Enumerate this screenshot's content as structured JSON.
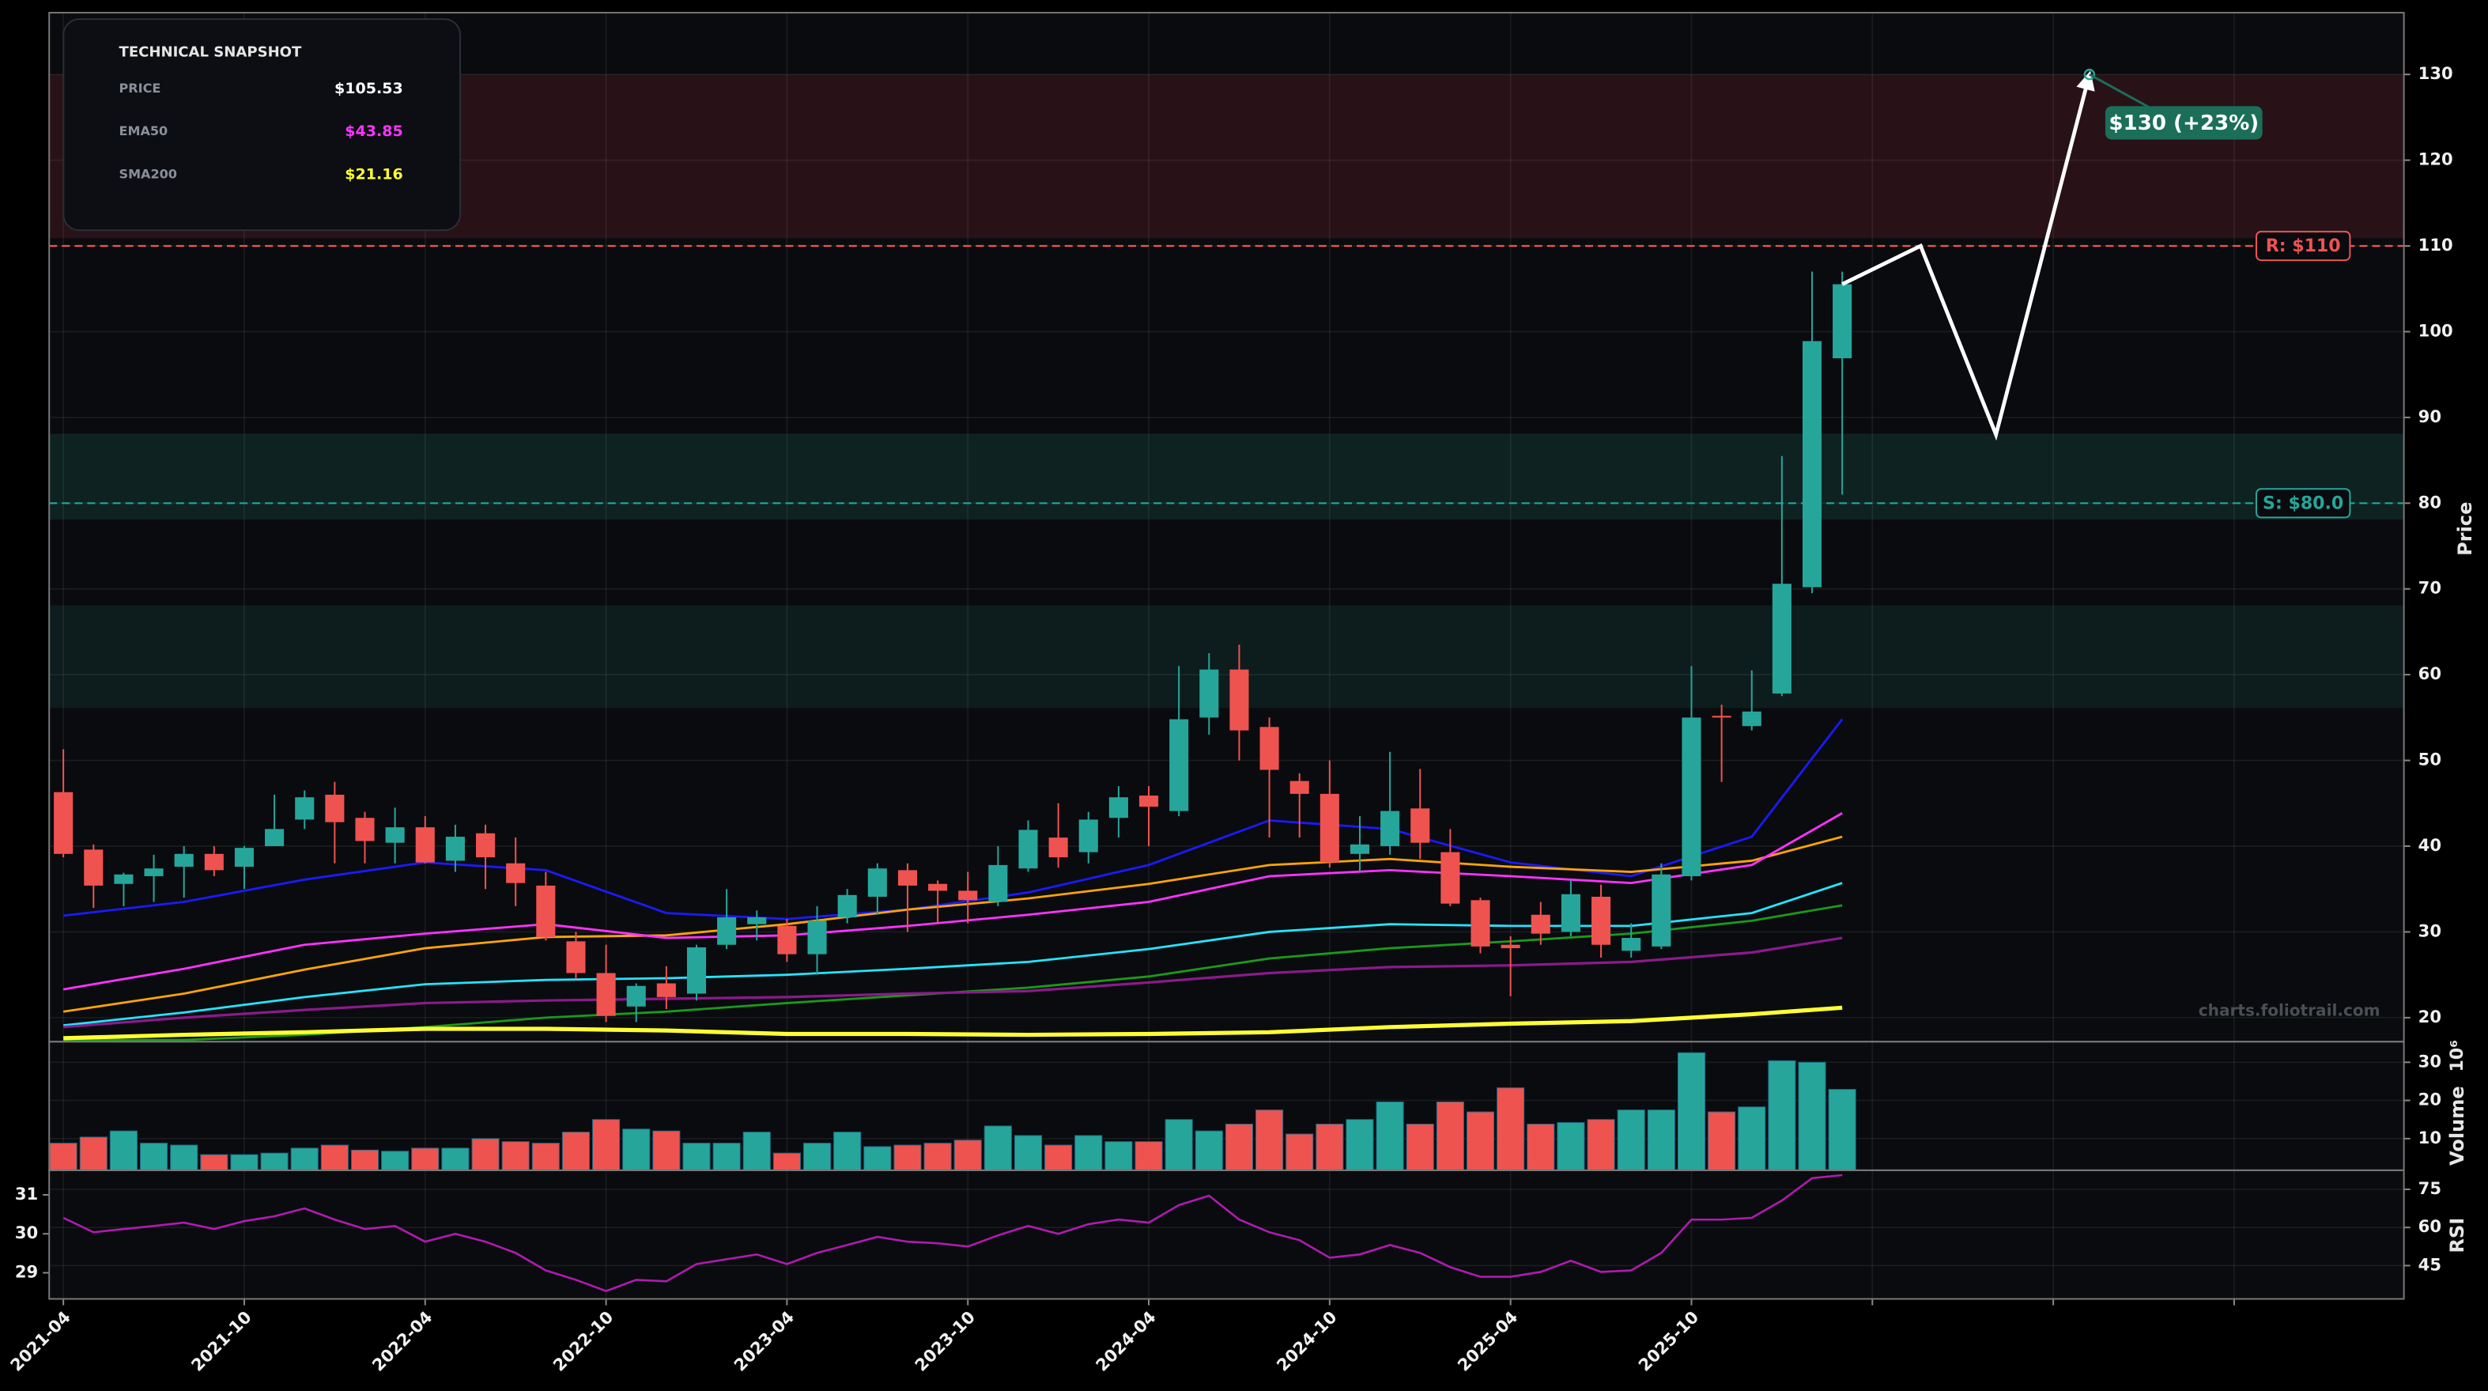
{
  "chart_data": {
    "type": "candlestick",
    "snapshot": {
      "title": "TECHNICAL SNAPSHOT",
      "rows": [
        {
          "label": "PRICE",
          "value": "$105.53",
          "color": "#ffffff"
        },
        {
          "label": "EMA50",
          "value": "$43.85",
          "color": "#ff33ff"
        },
        {
          "label": "SMA200",
          "value": "$21.16",
          "color": "#ffff33"
        }
      ]
    },
    "watermark": "charts.foliotrail.com",
    "ylabel": "Price",
    "categories": [
      "2021-04",
      null,
      null,
      null,
      null,
      null,
      "2021-10",
      null,
      null,
      null,
      null,
      null,
      "2022-04",
      null,
      null,
      null,
      null,
      null,
      "2022-10",
      null,
      null,
      null,
      null,
      null,
      "2023-04",
      null,
      null,
      null,
      null,
      null,
      "2023-10",
      null,
      null,
      null,
      null,
      null,
      "2024-04",
      null,
      null,
      null,
      null,
      null,
      "2024-10",
      null,
      null,
      null,
      null,
      null,
      "2025-04",
      null,
      null,
      null,
      null,
      null,
      "2025-10",
      null,
      null,
      null,
      null,
      null
    ],
    "future_xticks": [
      60,
      66,
      72
    ],
    "xlim": [
      -0.47,
      77.63
    ],
    "ylim": [
      17.2,
      137.2
    ],
    "yticks": [
      20,
      30,
      40,
      50,
      60,
      70,
      80,
      90,
      100,
      110,
      120,
      130
    ],
    "grid": true,
    "up_color": "#26a69a",
    "down_color": "#ef5350",
    "open": [
      46.3,
      39.6,
      35.6,
      36.5,
      37.6,
      39.1,
      37.6,
      40,
      43.1,
      46,
      43.3,
      40.4,
      42.2,
      38.3,
      41.5,
      38,
      35.4,
      28.9,
      25.2,
      21.3,
      24,
      22.8,
      28.5,
      30.9,
      30.7,
      27.4,
      31.7,
      34.1,
      37.2,
      35.6,
      34.8,
      33.5,
      37.4,
      41,
      39.3,
      43.3,
      45.9,
      44.1,
      55,
      60.6,
      53.9,
      47.6,
      46.1,
      39.1,
      40,
      44.4,
      39.3,
      33.7,
      28.5,
      32,
      30,
      34.1,
      27.8,
      28.3,
      36.5,
      55.2,
      54,
      57.8,
      70.2,
      96.9
    ],
    "high": [
      51.3,
      40.2,
      36.9,
      39,
      40,
      40,
      40,
      46,
      46.5,
      47.5,
      44,
      44.5,
      43.5,
      42.5,
      42.5,
      41,
      37,
      30,
      28.5,
      24,
      26,
      28.5,
      35,
      32.5,
      31.5,
      33,
      35,
      38,
      38,
      36,
      37,
      40,
      43,
      45,
      44,
      47,
      47,
      61,
      62.5,
      63.5,
      55,
      48.5,
      50,
      43.5,
      51,
      49,
      42,
      34,
      29.5,
      33.5,
      36,
      35.5,
      31,
      38,
      61,
      56.5,
      60.5,
      85.5,
      107,
      107
    ],
    "low": [
      38.7,
      32.8,
      33,
      33.5,
      34,
      36.5,
      35,
      40,
      42,
      38,
      38,
      38,
      38,
      37,
      35,
      33,
      29,
      24.5,
      19.5,
      19.5,
      21,
      22,
      28,
      29,
      26.5,
      25,
      31,
      32,
      30,
      31,
      31,
      33,
      37,
      37.5,
      38,
      41,
      40,
      43.5,
      53,
      50,
      41,
      41,
      37.5,
      37,
      39,
      38.5,
      33,
      27.5,
      22.5,
      28.5,
      29.5,
      27,
      27,
      28,
      36,
      47.5,
      53.5,
      57.5,
      69.5,
      81
    ],
    "close": [
      39.1,
      35.4,
      36.7,
      37.4,
      39.1,
      37.2,
      39.8,
      42,
      45.7,
      42.8,
      40.6,
      42.2,
      38.1,
      41.1,
      38.7,
      35.7,
      29.4,
      25.2,
      20.2,
      23.7,
      22.4,
      28.2,
      31.7,
      31.7,
      27.4,
      31.3,
      34.3,
      37.4,
      35.4,
      34.8,
      33.7,
      37.8,
      41.9,
      38.7,
      43.1,
      45.7,
      44.6,
      54.8,
      60.6,
      53.5,
      48.9,
      46.1,
      38.1,
      40.2,
      44.1,
      40.4,
      33.3,
      28.3,
      28.1,
      29.8,
      34.4,
      28.5,
      29.3,
      36.7,
      55,
      55,
      55.7,
      70.6,
      98.9,
      105.53
    ],
    "overlay_x": [
      0,
      4,
      8,
      12,
      16,
      20,
      24,
      28,
      32,
      36,
      40,
      44,
      48,
      52,
      56,
      59
    ],
    "overlays": [
      {
        "color": "#1a1aff",
        "width": 1.4,
        "values": [
          31.9,
          33.5,
          36.1,
          38.1,
          37.2,
          32.2,
          31.5,
          32.6,
          34.6,
          37.8,
          43,
          42,
          38.1,
          36.5,
          41.1,
          54.8
        ]
      },
      {
        "color": "#ffa500",
        "width": 1.4,
        "values": [
          20.7,
          22.8,
          25.6,
          28.1,
          29.4,
          29.6,
          30.9,
          32.6,
          33.9,
          35.6,
          37.8,
          38.5,
          37.6,
          37,
          38.3,
          41.1
        ]
      },
      {
        "color": "#ff33ff",
        "width": 1.4,
        "values": [
          23.3,
          25.7,
          28.5,
          29.8,
          30.9,
          29.3,
          29.6,
          30.7,
          32,
          33.5,
          36.5,
          37.2,
          36.5,
          35.7,
          37.8,
          43.85
        ]
      },
      {
        "color": "#22e5ff",
        "width": 1.4,
        "values": [
          19.1,
          20.6,
          22.4,
          23.9,
          24.4,
          24.6,
          25,
          25.7,
          26.5,
          28,
          30,
          30.9,
          30.7,
          30.7,
          32.2,
          35.7
        ]
      },
      {
        "color": "#1a9a1a",
        "width": 1.4,
        "values": [
          17.4,
          17.4,
          18,
          18.9,
          20,
          20.7,
          21.7,
          22.6,
          23.5,
          24.8,
          26.9,
          28.1,
          28.9,
          29.8,
          31.3,
          33.1
        ]
      },
      {
        "color": "#8b1a8b",
        "width": 1.6,
        "values": [
          18.9,
          20,
          20.9,
          21.7,
          22,
          22.2,
          22.4,
          22.8,
          23.1,
          24.1,
          25.2,
          25.9,
          26.1,
          26.5,
          27.6,
          29.3
        ]
      },
      {
        "color": "#ffff33",
        "width": 2.6,
        "values": [
          17.6,
          18,
          18.3,
          18.7,
          18.7,
          18.5,
          18.1,
          18.1,
          18,
          18.1,
          18.3,
          18.9,
          19.3,
          19.6,
          20.4,
          21.16
        ]
      }
    ],
    "zones": [
      {
        "from": 110.9,
        "to": 130,
        "color": "rgba(120,40,50,0.28)"
      },
      {
        "from": 78.1,
        "to": 88.1,
        "color": "rgba(30,120,100,0.22)"
      },
      {
        "from": 56.1,
        "to": 68.1,
        "color": "rgba(30,120,100,0.16)"
      }
    ],
    "levels": [
      {
        "value": 110,
        "label": "R: $110",
        "color": "#ef5350"
      },
      {
        "value": 80,
        "label": "S: $80.0",
        "color": "#26a69a"
      }
    ],
    "projection": {
      "x": [
        59,
        61.6,
        64.1,
        67.2
      ],
      "y": [
        105.53,
        110,
        88,
        130
      ],
      "label": "$130 (+23%)",
      "color": "#ffffff",
      "label_color": "#1b6e58"
    },
    "volume": {
      "ylabel": "Volume",
      "exponent_label": "10⁶",
      "ylim": [
        1.7,
        35.4
      ],
      "yticks": [
        10,
        20,
        30
      ],
      "values": [
        8.8,
        10.4,
        12,
        8.8,
        8.3,
        5.8,
        5.8,
        6.2,
        7.5,
        8.3,
        7,
        6.7,
        7.5,
        7.5,
        10,
        9.2,
        8.8,
        11.7,
        15,
        12.5,
        12,
        8.8,
        8.8,
        11.7,
        6.2,
        8.8,
        11.7,
        7.9,
        8.3,
        8.8,
        9.6,
        13.3,
        10.8,
        8.3,
        10.8,
        9.2,
        9.2,
        15,
        12,
        13.8,
        17.5,
        11.2,
        13.8,
        15,
        19.6,
        13.8,
        19.6,
        17,
        23.3,
        13.8,
        14.2,
        15,
        17.5,
        17.5,
        32.5,
        17,
        18.3,
        30.4,
        30,
        22.9
      ]
    },
    "rsi": {
      "ylabel": "RSI",
      "color": "#b01ab0",
      "ylim": [
        31.9,
        82.5
      ],
      "yticks": [
        45,
        60,
        75
      ],
      "y2lim": [
        28.33,
        31.63
      ],
      "y2ticks": [
        29,
        30,
        31
      ],
      "values": [
        63.8,
        58.1,
        59.4,
        60.6,
        61.9,
        59.4,
        62.5,
        64.4,
        67.5,
        63.1,
        59.4,
        60.6,
        54.4,
        57.5,
        54.4,
        50,
        43.1,
        39.4,
        35,
        39.4,
        38.8,
        45.6,
        47.5,
        49.4,
        45.6,
        50,
        53.1,
        56.3,
        54.4,
        53.8,
        52.5,
        56.9,
        60.6,
        57.5,
        61.3,
        63.1,
        61.9,
        68.8,
        72.5,
        63.1,
        58.1,
        55,
        48.1,
        49.4,
        53.1,
        50,
        44.4,
        40.6,
        40.6,
        42.5,
        46.9,
        42.5,
        43.1,
        50,
        63.1,
        63.1,
        63.8,
        70.6,
        79.4,
        80.6
      ]
    }
  }
}
